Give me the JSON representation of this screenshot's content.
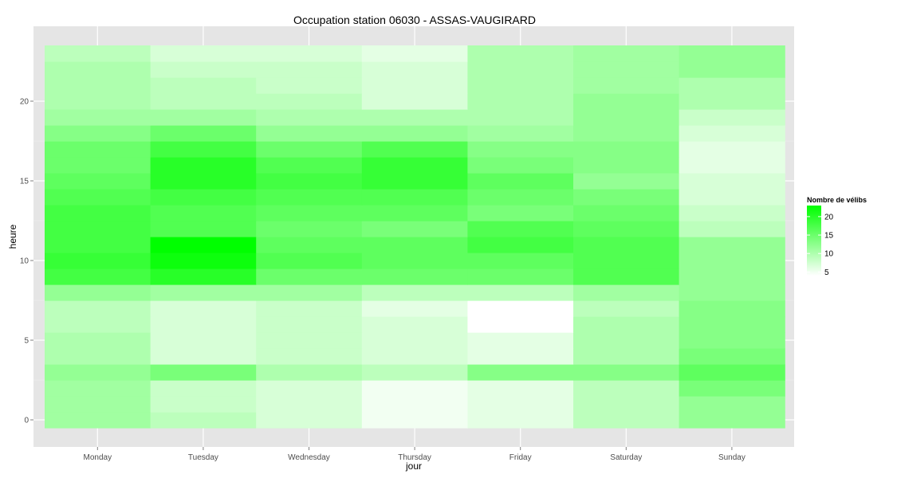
{
  "chart_data": {
    "type": "heatmap",
    "title": "Occupation station 06030 - ASSAS-VAUGIRARD",
    "xlabel": "jour",
    "ylabel": "heure",
    "x_categories": [
      "Monday",
      "Tuesday",
      "Wednesday",
      "Thursday",
      "Friday",
      "Saturday",
      "Sunday"
    ],
    "y_ticks": [
      0,
      5,
      10,
      15,
      20
    ],
    "ylim": [
      -0.5,
      23.5
    ],
    "hours": [
      0,
      1,
      2,
      3,
      4,
      5,
      6,
      7,
      8,
      9,
      10,
      11,
      12,
      13,
      14,
      15,
      16,
      17,
      18,
      19,
      20,
      21,
      22,
      23
    ],
    "grid": true,
    "legend": {
      "title": "Nombre de vélibs",
      "ticks": [
        5,
        10,
        15,
        20
      ],
      "range": [
        4,
        23
      ],
      "low_color": "#ffffff",
      "high_color": "#00ff00",
      "placement": "right"
    },
    "values": [
      [
        11,
        9,
        7,
        5,
        6,
        9,
        12
      ],
      [
        11,
        8,
        7,
        5,
        6,
        9,
        12
      ],
      [
        11,
        8,
        7,
        5,
        6,
        9,
        14
      ],
      [
        12,
        14,
        10,
        9,
        13,
        13,
        16
      ],
      [
        10,
        7,
        8,
        7,
        6,
        10,
        14
      ],
      [
        10,
        7,
        8,
        7,
        6,
        10,
        13
      ],
      [
        9,
        7,
        8,
        7,
        4,
        10,
        13
      ],
      [
        9,
        7,
        8,
        6,
        4,
        9,
        13
      ],
      [
        12,
        11,
        11,
        9,
        9,
        11,
        12
      ],
      [
        18,
        20,
        15,
        15,
        15,
        17,
        12
      ],
      [
        19,
        22,
        17,
        16,
        16,
        17,
        12
      ],
      [
        18,
        23,
        16,
        16,
        18,
        17,
        12
      ],
      [
        18,
        17,
        15,
        14,
        17,
        16,
        9
      ],
      [
        18,
        17,
        16,
        16,
        14,
        15,
        8
      ],
      [
        17,
        18,
        17,
        17,
        15,
        14,
        7
      ],
      [
        16,
        20,
        18,
        19,
        16,
        12,
        7
      ],
      [
        15,
        20,
        17,
        19,
        14,
        13,
        6
      ],
      [
        15,
        18,
        15,
        17,
        13,
        13,
        6
      ],
      [
        13,
        15,
        12,
        12,
        11,
        12,
        7
      ],
      [
        11,
        11,
        10,
        10,
        10,
        12,
        8
      ],
      [
        10,
        9,
        9,
        7,
        10,
        12,
        10
      ],
      [
        10,
        9,
        8,
        7,
        10,
        11,
        10
      ],
      [
        10,
        8,
        8,
        7,
        10,
        11,
        12
      ],
      [
        9,
        7,
        7,
        6,
        10,
        11,
        12
      ]
    ]
  }
}
